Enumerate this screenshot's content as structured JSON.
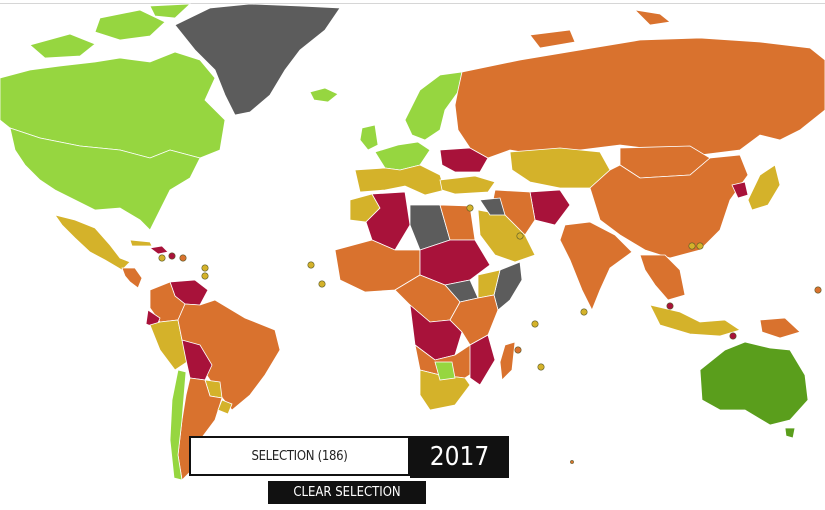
{
  "selection": {
    "label": "SELECTION (186)"
  },
  "year": {
    "value": "2017"
  },
  "clear": {
    "label": "CLEAR SELECTION"
  },
  "colors": {
    "very_low": "#5a9e1c",
    "low": "#96d640",
    "medium": "#d4b22a",
    "high": "#d9722e",
    "very_high": "#a8123a",
    "no_data": "#5c5c5c"
  }
}
